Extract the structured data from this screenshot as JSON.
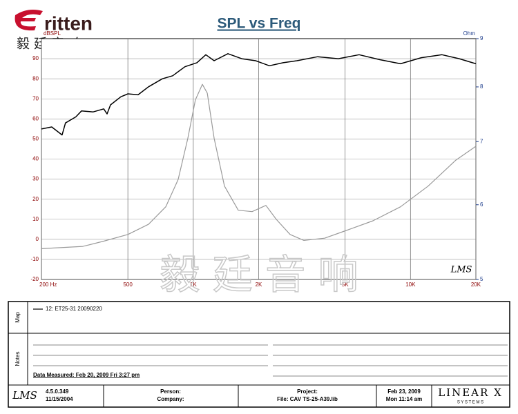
{
  "header": {
    "logo": "ritten",
    "logo_cn": "毅 廷 音 响"
  },
  "chart_data": {
    "type": "line",
    "title": "SPL vs Freq",
    "ylabel": "dBSPL",
    "y2label": "Ohm",
    "xscale": "log",
    "xlim": [
      200,
      20000
    ],
    "xticks": [
      {
        "value": 200,
        "label": "200  Hz"
      },
      {
        "value": 500,
        "label": "500"
      },
      {
        "value": 1000,
        "label": "1K"
      },
      {
        "value": 2000,
        "label": "2K"
      },
      {
        "value": 5000,
        "label": "5K"
      },
      {
        "value": 10000,
        "label": "10K"
      },
      {
        "value": 20000,
        "label": "20K"
      }
    ],
    "ylim": [
      -20,
      100
    ],
    "yticks": [
      -20,
      -10,
      0,
      10,
      20,
      30,
      40,
      50,
      60,
      70,
      80,
      90
    ],
    "y2scale": "log",
    "y2lim": [
      5,
      9
    ],
    "y2ticks": [
      5,
      6,
      7,
      8,
      9
    ],
    "grid": true,
    "series": [
      {
        "name": "12: ET25-31   20090220",
        "color": "#000000",
        "x": [
          200,
          223,
          249,
          258,
          288,
          306,
          346,
          387,
          401,
          416,
          464,
          500,
          557,
          622,
          720,
          804,
          916,
          1039,
          1142,
          1247,
          1444,
          1671,
          1936,
          2240,
          2594,
          3003,
          3740,
          4656,
          5800,
          7228,
          9000,
          11220,
          13960,
          16780,
          20000
        ],
        "values": [
          55,
          56,
          52,
          58,
          61,
          64,
          63.5,
          65,
          62.5,
          67,
          71,
          72.5,
          72,
          76,
          80,
          81.5,
          86,
          88,
          92,
          89,
          92.5,
          90,
          89,
          86.5,
          88,
          89,
          91,
          90,
          92,
          89.5,
          87.5,
          90.5,
          92,
          90,
          87.5
        ]
      },
      {
        "color": "#9a9a9a",
        "axis": "y2",
        "x": [
          200,
          310,
          387,
          500,
          622,
          747,
          852,
          944,
          1023,
          1101,
          1160,
          1247,
          1392,
          1612,
          1866,
          2160,
          2410,
          2790,
          3230,
          4025,
          5012,
          6720,
          9000,
          12060,
          16180,
          20000
        ],
        "values": [
          5.39,
          5.42,
          5.49,
          5.58,
          5.72,
          5.97,
          6.38,
          7.06,
          7.75,
          8.05,
          7.88,
          7.06,
          6.28,
          5.92,
          5.9,
          5.99,
          5.79,
          5.58,
          5.5,
          5.53,
          5.63,
          5.77,
          5.97,
          6.28,
          6.69,
          6.92
        ]
      }
    ]
  },
  "overlay": {
    "brand_mark": "LMS",
    "watermark": "毅 廷 音 响"
  },
  "map": {
    "label": "Map"
  },
  "notes": {
    "label": "Notes",
    "text": "Data Measured: Feb 20, 2009  Fri  3:27 pm"
  },
  "footer": {
    "logo": "LMS",
    "version": "4.5.0.349",
    "build_date": "11/15/2004",
    "person": "Person:",
    "company": "Company:",
    "project": "Project:",
    "file": "File: CAV TS-25-A39.lib",
    "date": "Feb 23, 2009",
    "time": "Mon 11:14 am",
    "brand": "LINEAR X",
    "brand_sub": "S Y S T E M S"
  }
}
